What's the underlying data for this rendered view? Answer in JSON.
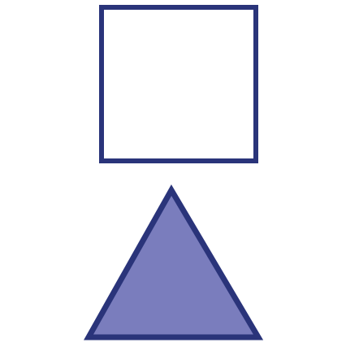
{
  "shapes": [
    {
      "kind": "square",
      "stroke": "#2a347a",
      "fill": "#ffffff"
    },
    {
      "kind": "triangle",
      "stroke": "#2a347a",
      "fill": "#7a7dbd"
    }
  ]
}
